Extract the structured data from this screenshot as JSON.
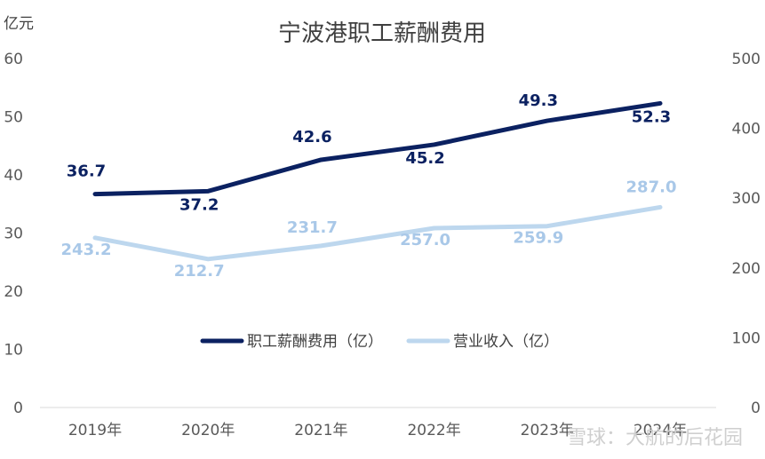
{
  "chart_data": {
    "type": "line",
    "title": "宁波港职工薪酬费用",
    "ylabel": "亿元",
    "categories": [
      "2019年",
      "2020年",
      "2021年",
      "2022年",
      "2023年",
      "2024年"
    ],
    "ylim": [
      0,
      60
    ],
    "y_ticks": [
      "0",
      "10",
      "20",
      "30",
      "40",
      "50",
      "60"
    ],
    "y2lim": [
      0,
      500
    ],
    "y2_ticks": [
      "0",
      "100",
      "200",
      "300",
      "400",
      "500"
    ],
    "series": [
      {
        "name": "职工薪酬费用（亿）",
        "axis": "left",
        "color": "#0b2161",
        "values": [
          36.7,
          37.2,
          42.6,
          45.2,
          49.3,
          52.3
        ],
        "labels": [
          "36.7",
          "37.2",
          "42.6",
          "45.2",
          "49.3",
          "52.3"
        ]
      },
      {
        "name": "营业收入（亿）",
        "axis": "right",
        "color": "#bdd7ee",
        "values": [
          243.2,
          212.7,
          231.7,
          257.0,
          259.9,
          287.0
        ],
        "labels": [
          "243.2",
          "212.7",
          "231.7",
          "257.0",
          "259.9",
          "287.0"
        ]
      }
    ],
    "grid": false,
    "legend": "inside-bottom-center"
  },
  "watermark": "雪球：大航的后花园"
}
